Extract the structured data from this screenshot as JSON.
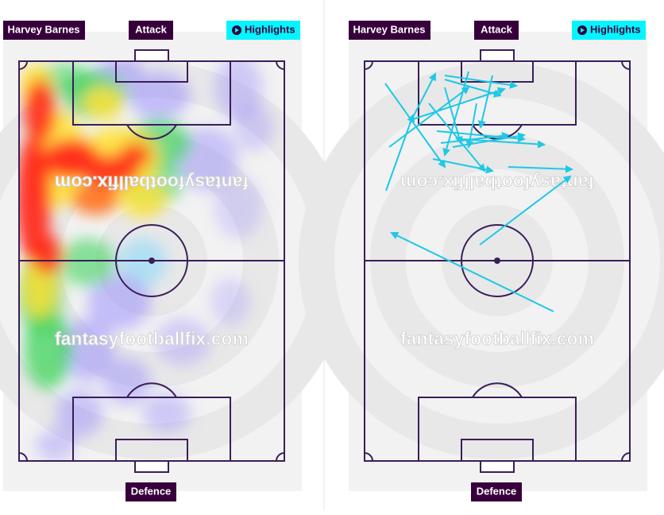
{
  "panels": [
    {
      "player": "Harvey Barnes",
      "top_label": "Attack",
      "button": "Highlights",
      "bottom_label": "Defence",
      "watermark": "fantasyfootballfix.com"
    },
    {
      "player": "Harvey Barnes",
      "top_label": "Attack",
      "button": "Highlights",
      "bottom_label": "Defence",
      "watermark": "fantasyfootballfix.com"
    }
  ]
}
